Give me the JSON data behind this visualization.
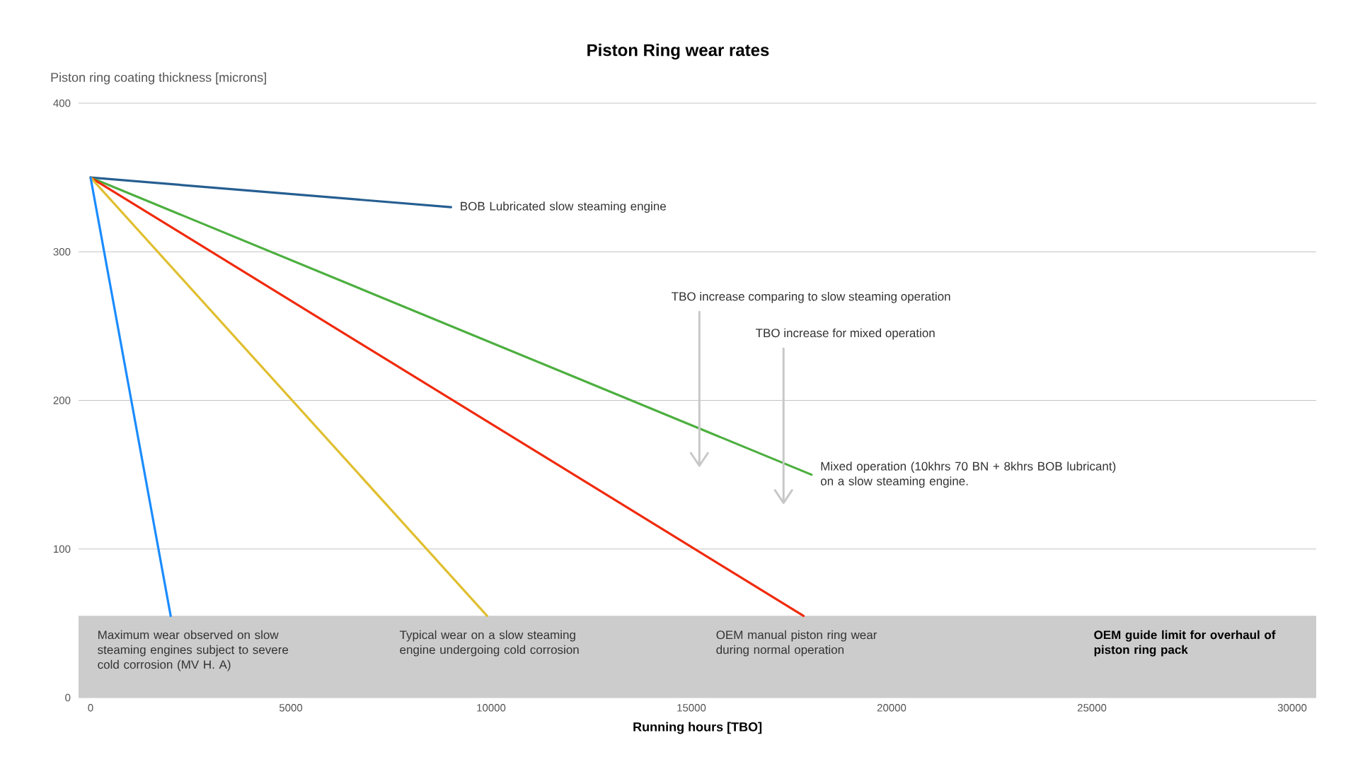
{
  "chart_data": {
    "type": "line",
    "title": "Piston Ring wear rates",
    "xlabel": "Running hours [TBO]",
    "ylabel": "Piston ring coating thickness [microns]",
    "xlim": [
      -300,
      30600
    ],
    "xticks": [
      0,
      5000,
      10000,
      15000,
      20000,
      25000,
      30000
    ],
    "ylim": [
      0,
      400
    ],
    "yticks": [
      0,
      100,
      200,
      300,
      400
    ],
    "grid": "y",
    "marker": "none",
    "line_style": "solid",
    "series": [
      {
        "name": "BOB Lubricated slow steaming engine",
        "color": "#255e91",
        "x": [
          0,
          9000
        ],
        "values": [
          350,
          330
        ]
      },
      {
        "name": "Mixed operation (10khrs 70 BN + 8khrs BOB lubricant) on a slow steaming engine.",
        "color": "#4caf3f",
        "x": [
          0,
          18000
        ],
        "values": [
          350,
          150
        ]
      },
      {
        "name": "OEM manual piston ring wear during normal operation",
        "color": "#f02a0c",
        "x": [
          0,
          17800
        ],
        "values": [
          350,
          55
        ]
      },
      {
        "name": "Typical wear on a slow steaming engine undergoing cold corrosion",
        "color": "#e0bf2f",
        "x": [
          0,
          9900
        ],
        "values": [
          350,
          55
        ]
      },
      {
        "name": "Maximum wear observed on slow steaming engines subject to severe cold corrosion (MV H. A)",
        "color": "#1a8cff",
        "x": [
          0,
          2000
        ],
        "values": [
          350,
          55
        ]
      }
    ],
    "bands": [
      {
        "axis": "y",
        "from": 0,
        "to": 55,
        "label": "OEM guide limit for overhaul of piston ring pack",
        "color": "#cccccc"
      }
    ],
    "annotations": [
      "TBO increase comparing to slow steaming operation",
      "TBO increase for mixed operation"
    ]
  }
}
